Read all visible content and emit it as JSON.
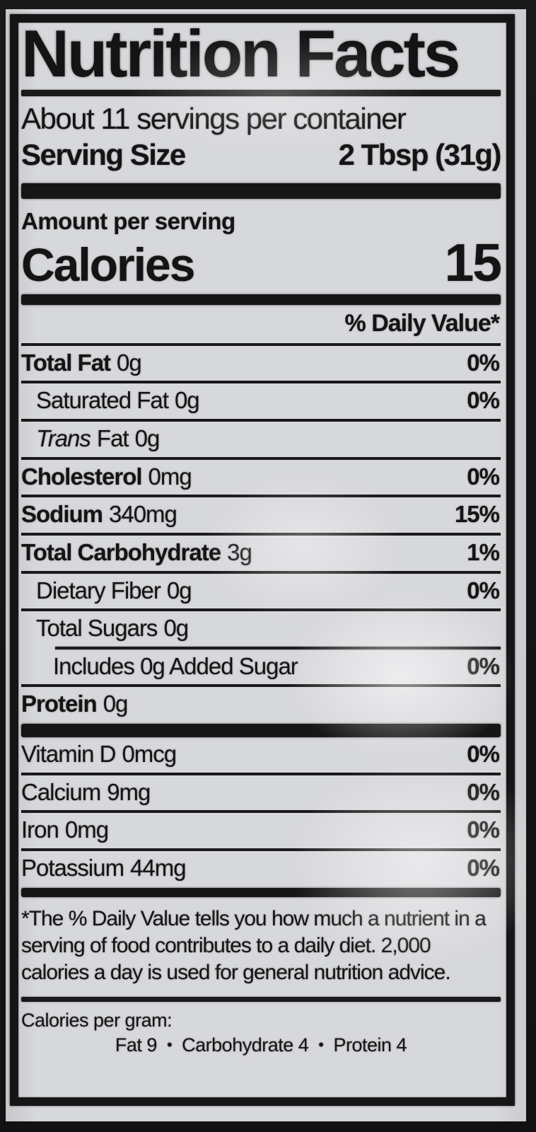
{
  "label": {
    "title": "Nutrition Facts",
    "servings_per_container": "About 11 servings per container",
    "serving_size_label": "Serving Size",
    "serving_size_value": "2 Tbsp (31g)",
    "amount_per_serving": "Amount per serving",
    "calories_label": "Calories",
    "calories_value": "15",
    "daily_value_header": "% Daily Value*",
    "nutrients": [
      {
        "name": "Total Fat",
        "amount": "0g",
        "dv": "0%"
      },
      {
        "name": "Saturated Fat",
        "amount": "0g",
        "dv": "0%"
      },
      {
        "name_italic": "Trans",
        "name": "Fat",
        "amount": "0g",
        "dv": ""
      },
      {
        "name": "Cholesterol",
        "amount": "0mg",
        "dv": "0%"
      },
      {
        "name": "Sodium",
        "amount": "340mg",
        "dv": "15%"
      },
      {
        "name": "Total Carbohydrate",
        "amount": "3g",
        "dv": "1%"
      },
      {
        "name": "Dietary Fiber",
        "amount": "0g",
        "dv": "0%"
      },
      {
        "name": "Total Sugars",
        "amount": "0g",
        "dv": ""
      },
      {
        "name": "Includes 0g Added Sugar",
        "amount": "",
        "dv": "0%"
      },
      {
        "name": "Protein",
        "amount": "0g",
        "dv": ""
      }
    ],
    "vitamins": [
      {
        "name": "Vitamin D",
        "amount": "0mcg",
        "dv": "0%"
      },
      {
        "name": "Calcium",
        "amount": "9mg",
        "dv": "0%"
      },
      {
        "name": "Iron",
        "amount": "0mg",
        "dv": "0%"
      },
      {
        "name": "Potassium",
        "amount": "44mg",
        "dv": "0%"
      }
    ],
    "footnote": "*The % Daily Value tells you how much a nutrient in a serving of food contributes to a daily diet. 2,000 calories a day is used for general nutrition advice.",
    "calories_per_gram": {
      "label": "Calories per gram:",
      "items": [
        "Fat 9",
        "Carbohydrate 4",
        "Protein 4"
      ],
      "separator": "•"
    }
  },
  "colors": {
    "paper": "#d7d8db",
    "ink": "#141414",
    "background": "#121212"
  }
}
